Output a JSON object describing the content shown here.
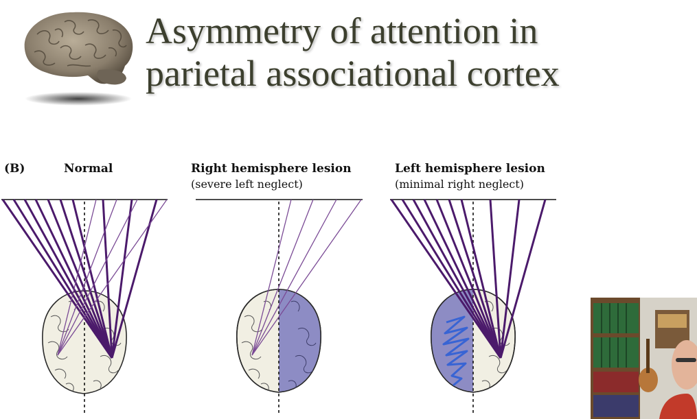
{
  "slide": {
    "title_line1": "Asymmetry of attention in",
    "title_line2": "parietal associational cortex"
  },
  "figure": {
    "panel_tag": "(B)",
    "panels": [
      {
        "label": "Normal",
        "sublabel": ""
      },
      {
        "label": "Right hemisphere lesion",
        "sublabel": "(severe left neglect)"
      },
      {
        "label": "Left hemisphere lesion",
        "sublabel": "(minimal right neglect)"
      }
    ]
  },
  "colors": {
    "attention_line": "#4b1a6b",
    "attention_line_thin": "#7a4a95",
    "lesion_fill": "#8d8cc4",
    "brain_fill": "#f1efe3",
    "scribble": "#2f5fd6",
    "title_text": "#3c3f2e"
  },
  "icons": {
    "brain_logo": "brain-image",
    "webcam": "presenter-webcam"
  }
}
